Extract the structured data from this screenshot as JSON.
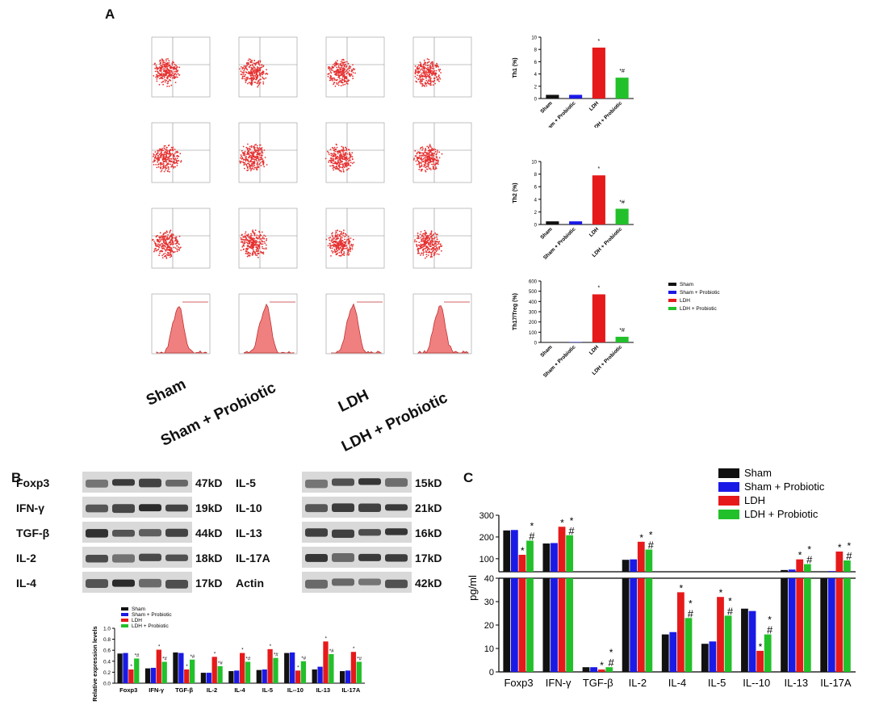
{
  "panels": {
    "a": "A",
    "b": "B",
    "c": "C"
  },
  "colors": {
    "sham": "#111111",
    "sham_probiotic": "#1a1ae6",
    "ldh": "#e61a1a",
    "ldh_probiotic": "#22c02a"
  },
  "conditions": [
    "Sham",
    "Sham + Probiotic",
    "LDH",
    "LDH + Probiotic"
  ],
  "wb": {
    "left": [
      {
        "label": "Foxp3",
        "kd": "47kD"
      },
      {
        "label": "IFN-γ",
        "kd": "19kD"
      },
      {
        "label": "TGF-β",
        "kd": "44kD"
      },
      {
        "label": "IL-2",
        "kd": "18kD"
      },
      {
        "label": "IL-4",
        "kd": "17kD"
      }
    ],
    "right": [
      {
        "label": "IL-5",
        "kd": "15kD"
      },
      {
        "label": "IL-10",
        "kd": "21kD"
      },
      {
        "label": "IL-13",
        "kd": "16kD"
      },
      {
        "label": "IL-17A",
        "kd": "17kD"
      },
      {
        "label": "Actin",
        "kd": "42kD"
      }
    ]
  },
  "chart_data": [
    {
      "id": "th1",
      "type": "bar",
      "ylabel": "Th1 (%)",
      "ylim": [
        0,
        10
      ],
      "yticks": [
        "0",
        "2",
        "4",
        "6",
        "8",
        "10"
      ],
      "categories": [
        "Sham",
        "Sham + Probiotic",
        "LDH",
        "LDH + Probiotic"
      ],
      "values": [
        0.6,
        0.6,
        8.3,
        3.4
      ],
      "annotations": [
        "",
        "",
        "*",
        "*#"
      ]
    },
    {
      "id": "th2",
      "type": "bar",
      "ylabel": "Th2 (%)",
      "ylim": [
        0,
        10
      ],
      "yticks": [
        "0",
        "2",
        "4",
        "6",
        "8",
        "10"
      ],
      "categories": [
        "Sham",
        "Sham + Probiotic",
        "LDH",
        "LDH + Probiotic"
      ],
      "values": [
        0.5,
        0.5,
        7.8,
        2.5
      ],
      "annotations": [
        "",
        "",
        "*",
        "*#"
      ]
    },
    {
      "id": "th17treg",
      "type": "bar",
      "ylabel": "Th17/Treg (%)",
      "ylim": [
        0,
        600
      ],
      "yticks": [
        "0",
        "100",
        "200",
        "300",
        "400",
        "500",
        "600"
      ],
      "categories": [
        "Sham",
        "Sham + Probiotic",
        "LDH",
        "LDH + Probiotic"
      ],
      "values": [
        3,
        4,
        470,
        55
      ],
      "annotations": [
        "",
        "",
        "*",
        "*#"
      ],
      "legend": [
        "Sham",
        "Sham + Probiotic",
        "LDH",
        "LDH + Probiotic"
      ]
    },
    {
      "id": "rel_expr",
      "type": "bar",
      "ylabel": "Relative expression levels",
      "ylim": [
        0,
        1.0
      ],
      "yticks": [
        "0.0",
        "0.2",
        "0.4",
        "0.6",
        "0.8",
        "1.0"
      ],
      "categories": [
        "Foxp3",
        "IFN-γ",
        "TGF-β",
        "IL-2",
        "IL-4",
        "IL-5",
        "IL--10",
        "IL-13",
        "IL-17A"
      ],
      "legend": [
        "Sham",
        "Sham + Probiotic",
        "LDH",
        "LDH + Probiotic"
      ],
      "series": [
        {
          "name": "Sham",
          "values": [
            0.54,
            0.27,
            0.56,
            0.19,
            0.22,
            0.24,
            0.55,
            0.25,
            0.22
          ]
        },
        {
          "name": "Sham + Probiotic",
          "values": [
            0.55,
            0.28,
            0.55,
            0.19,
            0.23,
            0.25,
            0.56,
            0.3,
            0.23
          ]
        },
        {
          "name": "LDH",
          "values": [
            0.25,
            0.61,
            0.25,
            0.48,
            0.55,
            0.62,
            0.23,
            0.76,
            0.57
          ]
        },
        {
          "name": "LDH + Probiotic",
          "values": [
            0.45,
            0.39,
            0.43,
            0.31,
            0.39,
            0.46,
            0.4,
            0.53,
            0.39
          ]
        }
      ]
    },
    {
      "id": "cytokines",
      "type": "bar",
      "ylabel": "pg/ml",
      "broken_axis": {
        "lower_ylim": [
          0,
          40
        ],
        "upper_ylim": [
          40,
          300
        ]
      },
      "yticks_lower": [
        "0",
        "10",
        "20",
        "30",
        "40"
      ],
      "yticks_upper": [
        "100",
        "200",
        "300"
      ],
      "categories": [
        "Foxp3",
        "IFN-γ",
        "TGF-β",
        "IL-2",
        "IL-4",
        "IL-5",
        "IL--10",
        "IL-13",
        "IL-17A"
      ],
      "legend": [
        "Sham",
        "Sham + Probiotic",
        "LDH",
        "LDH + Probiotic"
      ],
      "series": [
        {
          "name": "Sham",
          "values": [
            230,
            170,
            2,
            95,
            16,
            12,
            27,
            48,
            42
          ]
        },
        {
          "name": "Sham + Probiotic",
          "values": [
            232,
            172,
            2,
            97,
            17,
            13,
            26,
            50,
            43
          ]
        },
        {
          "name": "LDH",
          "values": [
            118,
            247,
            1,
            178,
            34,
            32,
            9,
            97,
            133
          ]
        },
        {
          "name": "LDH + Probiotic",
          "values": [
            183,
            208,
            2,
            142,
            23,
            24,
            16,
            75,
            92
          ]
        }
      ]
    }
  ]
}
